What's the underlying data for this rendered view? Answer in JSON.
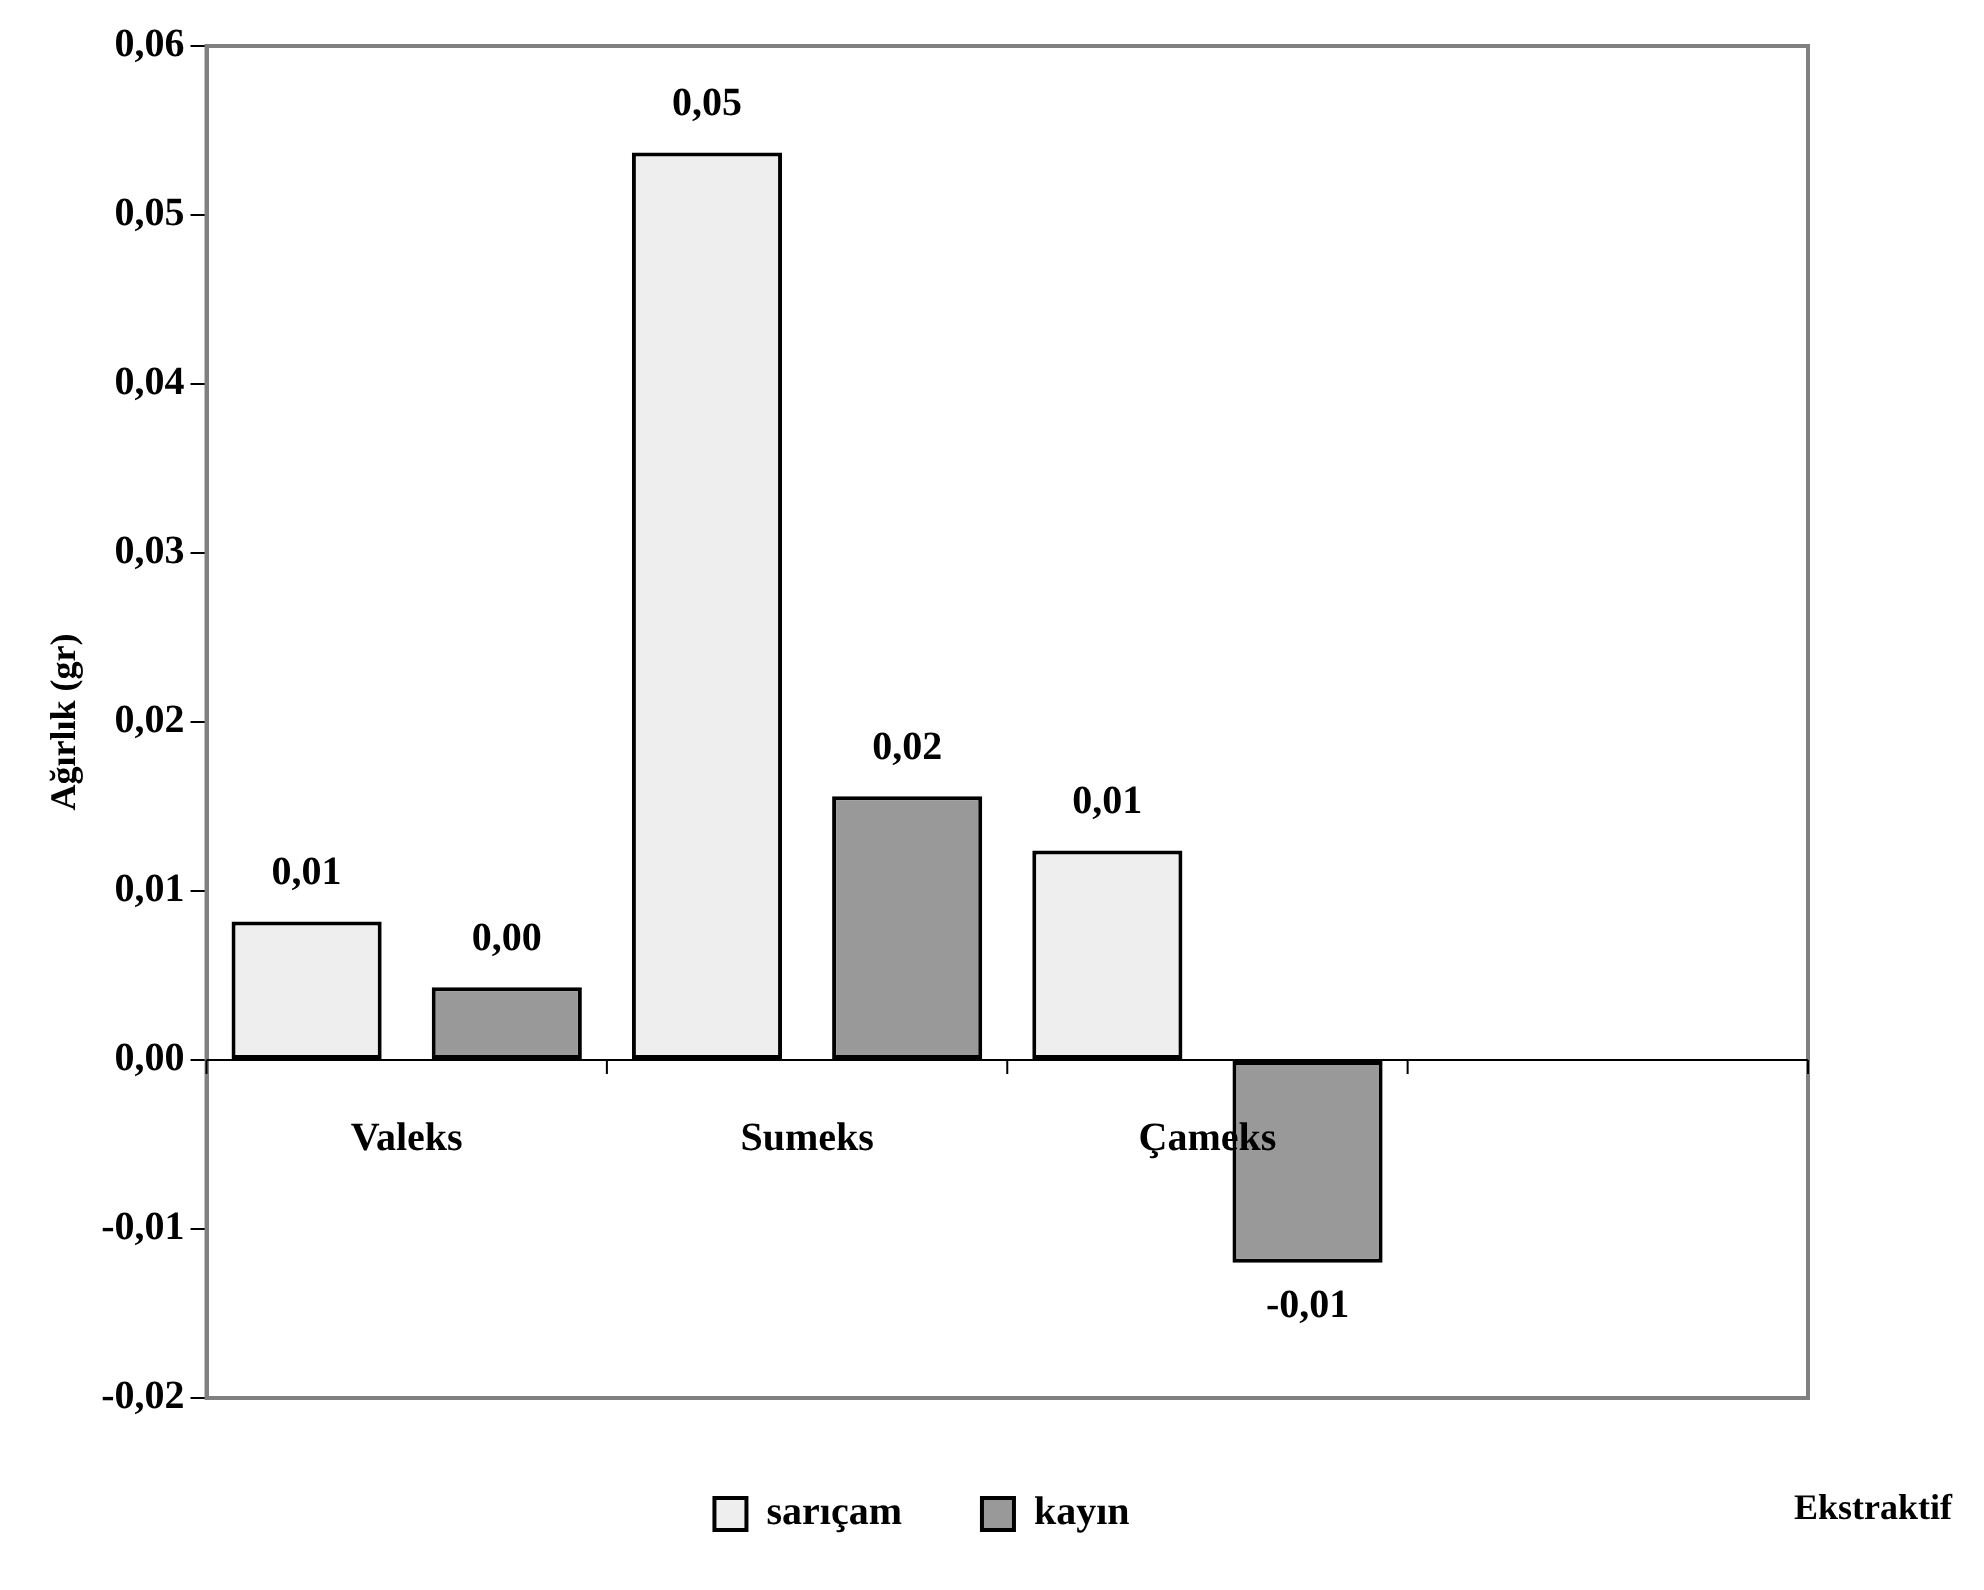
{
  "chart_data": {
    "type": "bar",
    "xlabel": "Ekstraktif",
    "ylabel": "Ağırlık (gr)",
    "categories": [
      "Valeks",
      "Sumeks",
      "Çameks",
      null
    ],
    "series": [
      {
        "name": "sarıçam",
        "color": "#eeeeee",
        "values": [
          0.0082,
          0.0537,
          0.0124,
          null
        ],
        "value_labels": [
          "0,01",
          "0,05",
          "0,01",
          null
        ]
      },
      {
        "name": "kayın",
        "color": "#999999",
        "values": [
          0.0043,
          0.0156,
          -0.012,
          null
        ],
        "value_labels": [
          "0,00",
          "0,02",
          "-0,01",
          null
        ]
      }
    ],
    "ylim": [
      -0.02,
      0.06
    ],
    "yticks": [
      {
        "value": -0.02,
        "label": "-0,02"
      },
      {
        "value": -0.01,
        "label": "-0,01"
      },
      {
        "value": 0,
        "label": "0,00"
      },
      {
        "value": 0.01,
        "label": "0,01"
      },
      {
        "value": 0.02,
        "label": "0,02"
      },
      {
        "value": 0.03,
        "label": "0,03"
      },
      {
        "value": 0.04,
        "label": "0,04"
      },
      {
        "value": 0.05,
        "label": "0,05"
      },
      {
        "value": 0.06,
        "label": "0,06"
      }
    ],
    "grid": false,
    "legend": "bottom"
  }
}
